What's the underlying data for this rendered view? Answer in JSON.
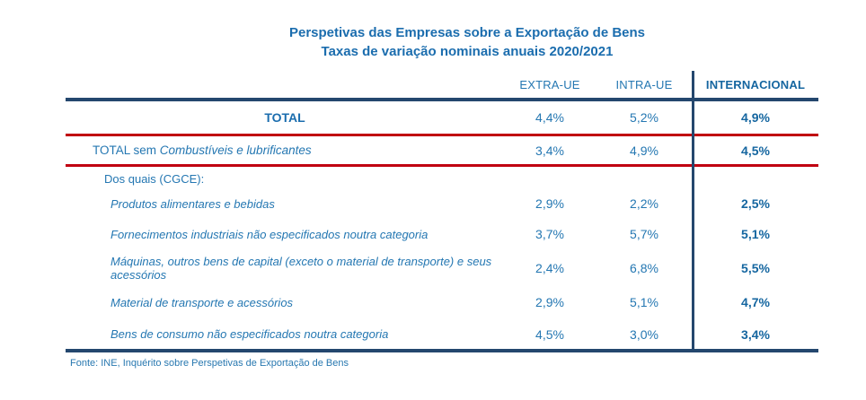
{
  "title": {
    "line1": "Perspetivas das Empresas sobre a Exportação de Bens",
    "line2": "Taxas de variação nominais anuais 2020/2021"
  },
  "table": {
    "columns": {
      "extra": "EXTRA-UE",
      "intra": "INTRA-UE",
      "internacional": "INTERNACIONAL"
    },
    "rows": [
      {
        "label": "TOTAL",
        "extra": "4,4%",
        "intra": "5,2%",
        "internacional": "4,9%"
      },
      {
        "label_prefix": "TOTAL sem ",
        "label_italic": "Combustíveis e lubrificantes",
        "extra": "3,4%",
        "intra": "4,9%",
        "internacional": "4,5%"
      },
      {
        "label": "Dos quais (CGCE):",
        "extra": "",
        "intra": "",
        "internacional": ""
      },
      {
        "label": "Produtos alimentares e bebidas",
        "extra": "2,9%",
        "intra": "2,2%",
        "internacional": "2,5%"
      },
      {
        "label": "Fornecimentos industriais não especificados noutra categoria",
        "extra": "3,7%",
        "intra": "5,7%",
        "internacional": "5,1%"
      },
      {
        "label": "Máquinas, outros bens de capital (exceto o material de transporte) e seus acessórios",
        "extra": "2,4%",
        "intra": "6,8%",
        "internacional": "5,5%"
      },
      {
        "label": "Material de transporte e acessórios",
        "extra": "2,9%",
        "intra": "5,1%",
        "internacional": "4,7%"
      },
      {
        "label": "Bens de consumo não especificados noutra categoria",
        "extra": "4,5%",
        "intra": "3,0%",
        "internacional": "3,4%"
      }
    ]
  },
  "footer": {
    "source": "Fonte: INE, Inquérito sobre Perspetivas de Exportação de Bens"
  },
  "colors": {
    "text_blue": "#2477b2",
    "bold_blue": "#1566a0",
    "line_navy": "#24476e",
    "line_red": "#c00010"
  }
}
